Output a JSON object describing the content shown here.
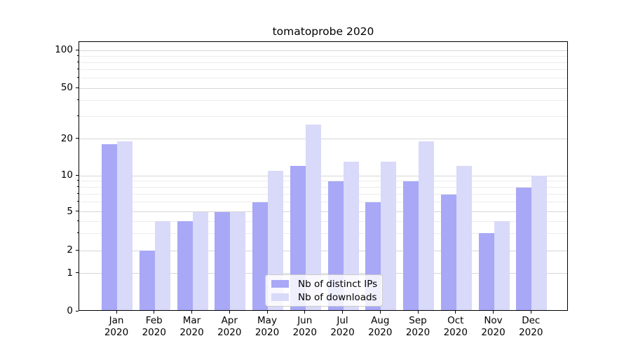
{
  "title": "tomatoprobe 2020",
  "colors": {
    "distinct_ips_bar": "#a8a8f7",
    "downloads_bar": "#d9d9f9",
    "grid_major": "#d6d6d6",
    "grid_minor": "#ececec",
    "axis": "#000000",
    "legend_border": "#cccccc"
  },
  "legend": {
    "items": [
      {
        "label": "Nb of distinct IPs",
        "color": "#a8a8f7"
      },
      {
        "label": "Nb of downloads",
        "color": "#d9d9f9"
      }
    ]
  },
  "y_axis": {
    "tick_labels": [
      "100",
      "50",
      "20",
      "10",
      "5",
      "2",
      "1",
      "0"
    ],
    "tick_values": [
      100,
      50,
      20,
      10,
      5,
      2,
      1,
      0
    ],
    "minor_tick_values": [
      90,
      80,
      70,
      60,
      40,
      30,
      9,
      8,
      7,
      6,
      4,
      3
    ],
    "scale": "symlog"
  },
  "x_axis": {
    "tick_labels": [
      [
        "Jan",
        "2020"
      ],
      [
        "Feb",
        "2020"
      ],
      [
        "Mar",
        "2020"
      ],
      [
        "Apr",
        "2020"
      ],
      [
        "May",
        "2020"
      ],
      [
        "Jun",
        "2020"
      ],
      [
        "Jul",
        "2020"
      ],
      [
        "Aug",
        "2020"
      ],
      [
        "Sep",
        "2020"
      ],
      [
        "Oct",
        "2020"
      ],
      [
        "Nov",
        "2020"
      ],
      [
        "Dec",
        "2020"
      ]
    ]
  },
  "chart_data": {
    "type": "bar",
    "title": "tomatoprobe 2020",
    "categories": [
      "Jan 2020",
      "Feb 2020",
      "Mar 2020",
      "Apr 2020",
      "May 2020",
      "Jun 2020",
      "Jul 2020",
      "Aug 2020",
      "Sep 2020",
      "Oct 2020",
      "Nov 2020",
      "Dec 2020"
    ],
    "series": [
      {
        "name": "Nb of distinct IPs",
        "color": "#a8a8f7",
        "values": [
          18,
          2,
          4,
          5,
          6,
          12,
          9,
          6,
          9,
          7,
          3,
          8
        ]
      },
      {
        "name": "Nb of downloads",
        "color": "#d9d9f9",
        "values": [
          19,
          4,
          5,
          5,
          11,
          26,
          13,
          13,
          19,
          12,
          4,
          10
        ]
      }
    ],
    "xlabel": "",
    "ylabel": "",
    "yscale": "symlog",
    "y_ticks": [
      0,
      1,
      2,
      5,
      10,
      20,
      50,
      100
    ],
    "ylim": [
      0,
      110
    ],
    "grid": "on",
    "legend_position": "lower center"
  }
}
